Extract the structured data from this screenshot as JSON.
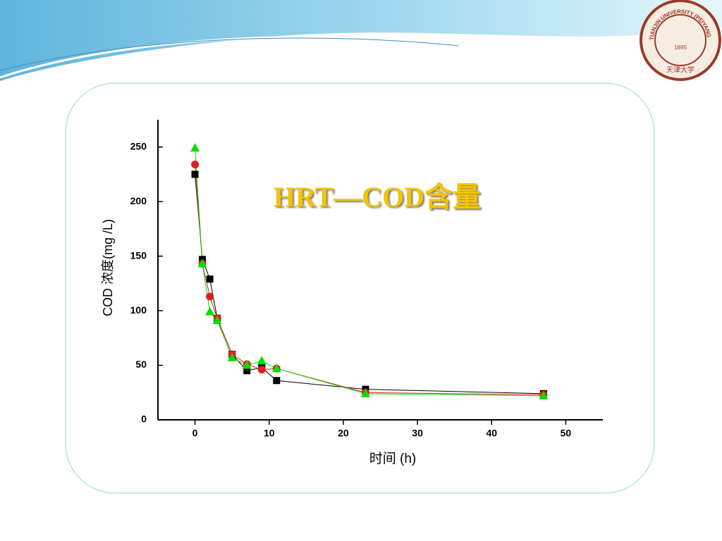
{
  "chart_data": {
    "type": "line",
    "title": "HRT—COD含量",
    "x_label": "时间 (h)",
    "y_label": "COD 浓度(mg /L)",
    "x": [
      0,
      1,
      2,
      3,
      5,
      7,
      9,
      11,
      23,
      47
    ],
    "series": [
      {
        "color": "#000000",
        "marker": "square",
        "values": [
          225,
          147,
          129,
          93,
          60,
          45,
          48,
          36,
          28,
          24
        ]
      },
      {
        "color": "#e02020",
        "marker": "circle",
        "values": [
          234,
          143,
          113,
          93,
          60,
          51,
          46,
          47,
          25,
          23
        ]
      },
      {
        "color": "#00e000",
        "marker": "triangle",
        "values": [
          249,
          143,
          99,
          91,
          57,
          50,
          54,
          47,
          24,
          22
        ]
      }
    ],
    "xlim": [
      -5,
      55
    ],
    "ylim": [
      0,
      275
    ],
    "xticks": [
      0,
      10,
      20,
      30,
      40,
      50
    ],
    "yticks": [
      0,
      50,
      100,
      150,
      200,
      250
    ]
  },
  "logo": {
    "year": "1895",
    "ring": "TIANJIN UNIVERSITY (PEIYANG UNIVERSITY)",
    "name": "天津大学"
  }
}
